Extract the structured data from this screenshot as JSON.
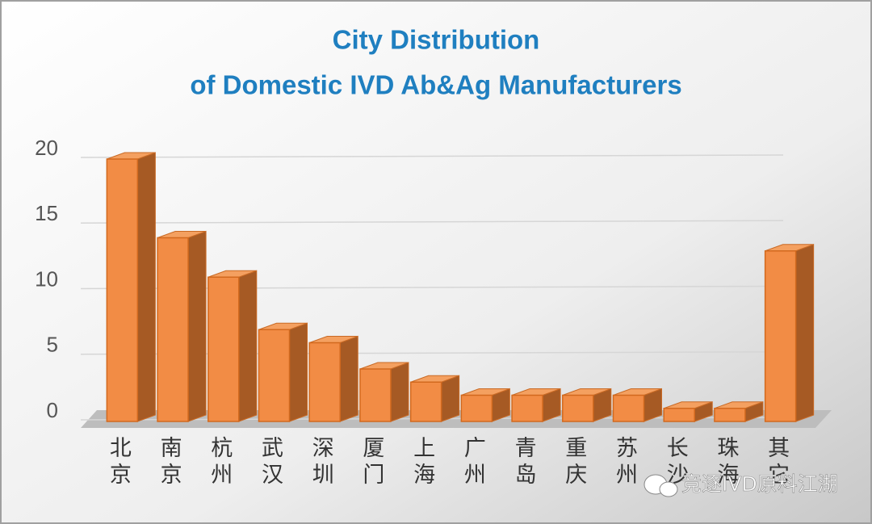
{
  "chart_data": {
    "type": "bar3d",
    "title_lines": [
      "City Distribution",
      "of Domestic IVD Ab&Ag Manufacturers"
    ],
    "categories": [
      "北京",
      "南京",
      "杭州",
      "武汉",
      "深圳",
      "厦门",
      "上海",
      "广州",
      "青岛",
      "重庆",
      "苏州",
      "长沙",
      "珠海",
      "其它"
    ],
    "values": [
      20,
      14,
      11,
      7,
      6,
      4,
      3,
      2,
      2,
      2,
      2,
      1,
      1,
      13
    ],
    "color": "#f28c45",
    "ylim": [
      0,
      20
    ],
    "yticks": [
      0,
      5,
      10,
      15,
      20
    ],
    "grid": true
  },
  "watermark": "竞逐IVD原料江湖"
}
